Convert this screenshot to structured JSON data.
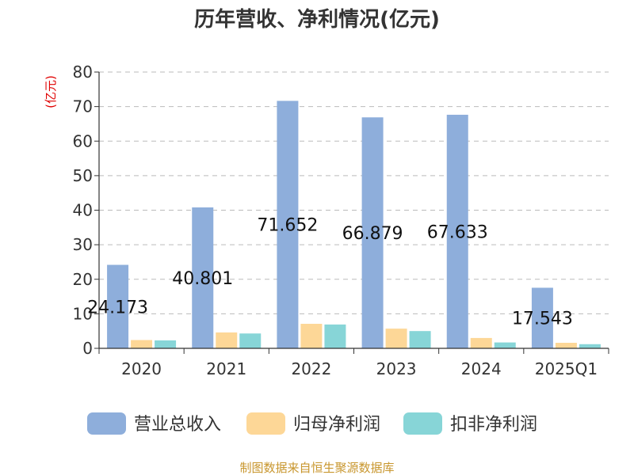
{
  "chart_data": {
    "type": "bar",
    "title": "历年营收、净利情况(亿元)",
    "ylabel": "(亿元)",
    "xlabel": "",
    "categories": [
      "2020",
      "2021",
      "2022",
      "2023",
      "2024",
      "2025Q1"
    ],
    "ylim": [
      0,
      80
    ],
    "yticks": [
      "0",
      "10",
      "20",
      "30",
      "40",
      "50",
      "60",
      "70",
      "80"
    ],
    "grid": true,
    "legend_position": "bottom",
    "series": [
      {
        "name": "营业总收入",
        "color": "#8eaedb",
        "values": [
          24.173,
          40.801,
          71.652,
          66.879,
          67.633,
          17.543
        ],
        "data_labels": [
          "24.173",
          "40.801",
          "71.652",
          "66.879",
          "67.633",
          "17.543"
        ]
      },
      {
        "name": "归母净利润",
        "color": "#fdd797",
        "values": [
          2.4,
          4.6,
          7.1,
          5.7,
          3.0,
          1.6
        ]
      },
      {
        "name": "扣非净利润",
        "color": "#87d5d7",
        "values": [
          2.3,
          4.3,
          6.9,
          5.0,
          1.7,
          1.2
        ]
      }
    ]
  },
  "footer": {
    "source": "制图数据来自恒生聚源数据库"
  }
}
